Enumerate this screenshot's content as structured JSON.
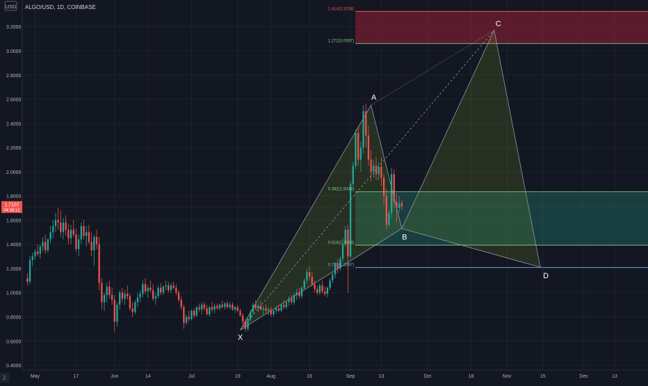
{
  "header": {
    "symbol_label": "ALGO/USD, 1D, COINBASE",
    "currency_badge": "USD",
    "corner_badge": "Z"
  },
  "colors": {
    "background": "#131722",
    "grid": "#1e222d",
    "text": "#b2b5be",
    "candle_up": "#26a69a",
    "candle_down": "#ef5350",
    "pattern_fill": "#6b8e23",
    "pattern_stroke": "#9598a1",
    "zone_red": "#b2243a",
    "zone_teal": "#1e6e66",
    "line_green": "#81c784",
    "line_blue": "#5fb3e6",
    "price_badge": "#ef5350"
  },
  "chart_data": {
    "type": "candlestick",
    "title": "ALGO/USD, 1D, COINBASE",
    "ylim": [
      0.36,
      3.42
    ],
    "y_ticks": [
      "3.2000",
      "3.0000",
      "2.8000",
      "2.6000",
      "2.4000",
      "2.2000",
      "2.0000",
      "1.8000",
      "1.6000",
      "1.4000",
      "1.2000",
      "1.0000",
      "0.8000",
      "0.6000",
      "0.4000"
    ],
    "x_axis": {
      "range": [
        "2021-04-26",
        "2021-12-26"
      ],
      "ticks": [
        {
          "date": "2021-05-01",
          "label": "May"
        },
        {
          "date": "2021-05-17",
          "label": "17"
        },
        {
          "date": "2021-06-01",
          "label": "Jun"
        },
        {
          "date": "2021-06-14",
          "label": "14"
        },
        {
          "date": "2021-07-01",
          "label": "Jul"
        },
        {
          "date": "2021-07-19",
          "label": "19"
        },
        {
          "date": "2021-08-01",
          "label": "Aug"
        },
        {
          "date": "2021-08-16",
          "label": "16"
        },
        {
          "date": "2021-09-01",
          "label": "Sep"
        },
        {
          "date": "2021-09-13",
          "label": "13"
        },
        {
          "date": "2021-10-01",
          "label": "Oct"
        },
        {
          "date": "2021-10-18",
          "label": "18"
        },
        {
          "date": "2021-11-01",
          "label": "Nov"
        },
        {
          "date": "2021-11-15",
          "label": "15"
        },
        {
          "date": "2021-12-01",
          "label": "Dec"
        },
        {
          "date": "2021-12-13",
          "label": "13"
        }
      ]
    },
    "candles": {
      "start_date": "2021-04-28",
      "ohlc": [
        [
          1.12,
          1.16,
          1.06,
          1.09
        ],
        [
          1.09,
          1.3,
          1.07,
          1.27
        ],
        [
          1.27,
          1.33,
          1.22,
          1.3
        ],
        [
          1.3,
          1.36,
          1.27,
          1.34
        ],
        [
          1.34,
          1.4,
          1.3,
          1.32
        ],
        [
          1.32,
          1.4,
          1.28,
          1.38
        ],
        [
          1.38,
          1.46,
          1.34,
          1.42
        ],
        [
          1.42,
          1.48,
          1.32,
          1.35
        ],
        [
          1.35,
          1.45,
          1.33,
          1.44
        ],
        [
          1.44,
          1.55,
          1.41,
          1.5
        ],
        [
          1.5,
          1.6,
          1.45,
          1.55
        ],
        [
          1.55,
          1.66,
          1.5,
          1.6
        ],
        [
          1.6,
          1.7,
          1.52,
          1.58
        ],
        [
          1.58,
          1.68,
          1.46,
          1.5
        ],
        [
          1.5,
          1.62,
          1.44,
          1.58
        ],
        [
          1.58,
          1.64,
          1.47,
          1.52
        ],
        [
          1.52,
          1.57,
          1.4,
          1.45
        ],
        [
          1.45,
          1.56,
          1.4,
          1.52
        ],
        [
          1.52,
          1.6,
          1.46,
          1.48
        ],
        [
          1.48,
          1.53,
          1.34,
          1.36
        ],
        [
          1.36,
          1.48,
          1.3,
          1.44
        ],
        [
          1.44,
          1.58,
          1.4,
          1.55
        ],
        [
          1.55,
          1.6,
          1.44,
          1.47
        ],
        [
          1.47,
          1.55,
          1.38,
          1.5
        ],
        [
          1.5,
          1.56,
          1.4,
          1.42
        ],
        [
          1.42,
          1.5,
          1.3,
          1.35
        ],
        [
          1.35,
          1.48,
          1.22,
          1.46
        ],
        [
          1.46,
          1.52,
          1.36,
          1.4
        ],
        [
          1.4,
          1.46,
          1.02,
          1.08
        ],
        [
          1.08,
          1.12,
          0.86,
          0.92
        ],
        [
          0.92,
          1.0,
          0.85,
          0.98
        ],
        [
          0.98,
          1.08,
          0.92,
          1.05
        ],
        [
          1.05,
          1.1,
          0.95,
          0.98
        ],
        [
          0.98,
          1.04,
          0.9,
          0.94
        ],
        [
          0.94,
          0.98,
          0.68,
          0.76
        ],
        [
          0.76,
          0.92,
          0.72,
          0.9
        ],
        [
          0.9,
          1.02,
          0.86,
          1.0
        ],
        [
          1.0,
          1.04,
          0.92,
          0.95
        ],
        [
          0.95,
          1.02,
          0.9,
          0.99
        ],
        [
          0.99,
          1.06,
          0.94,
          0.97
        ],
        [
          0.97,
          0.99,
          0.85,
          0.87
        ],
        [
          0.87,
          0.92,
          0.8,
          0.84
        ],
        [
          0.84,
          0.94,
          0.82,
          0.92
        ],
        [
          0.92,
          1.0,
          0.88,
          0.96
        ],
        [
          0.96,
          1.02,
          0.92,
          0.99
        ],
        [
          0.99,
          1.1,
          0.96,
          1.07
        ],
        [
          1.07,
          1.12,
          0.99,
          1.01
        ],
        [
          1.01,
          1.06,
          0.96,
          1.04
        ],
        [
          1.04,
          1.1,
          1.0,
          1.02
        ],
        [
          1.02,
          1.07,
          0.93,
          0.95
        ],
        [
          0.95,
          1.0,
          0.9,
          0.97
        ],
        [
          0.97,
          1.06,
          0.95,
          1.04
        ],
        [
          1.04,
          1.08,
          0.98,
          1.0
        ],
        [
          1.0,
          1.06,
          0.98,
          1.05
        ],
        [
          1.05,
          1.1,
          1.02,
          1.06
        ],
        [
          1.06,
          1.09,
          1.0,
          1.02
        ],
        [
          1.02,
          1.08,
          1.0,
          1.06
        ],
        [
          1.06,
          1.09,
          1.03,
          1.04
        ],
        [
          1.04,
          1.07,
          0.98,
          1.0
        ],
        [
          1.0,
          1.02,
          0.92,
          0.94
        ],
        [
          0.94,
          0.97,
          0.86,
          0.88
        ],
        [
          0.88,
          0.9,
          0.7,
          0.75
        ],
        [
          0.75,
          0.82,
          0.73,
          0.8
        ],
        [
          0.8,
          0.85,
          0.76,
          0.78
        ],
        [
          0.78,
          0.86,
          0.77,
          0.85
        ],
        [
          0.85,
          0.87,
          0.79,
          0.81
        ],
        [
          0.81,
          0.89,
          0.8,
          0.88
        ],
        [
          0.88,
          0.91,
          0.84,
          0.86
        ],
        [
          0.86,
          0.92,
          0.82,
          0.9
        ],
        [
          0.9,
          0.92,
          0.85,
          0.87
        ],
        [
          0.87,
          0.9,
          0.81,
          0.82
        ],
        [
          0.82,
          0.89,
          0.8,
          0.88
        ],
        [
          0.88,
          0.92,
          0.84,
          0.86
        ],
        [
          0.86,
          0.91,
          0.83,
          0.89
        ],
        [
          0.89,
          0.91,
          0.86,
          0.87
        ],
        [
          0.87,
          0.91,
          0.85,
          0.9
        ],
        [
          0.9,
          0.93,
          0.87,
          0.88
        ],
        [
          0.88,
          0.92,
          0.86,
          0.91
        ],
        [
          0.91,
          0.93,
          0.87,
          0.88
        ],
        [
          0.88,
          0.92,
          0.86,
          0.9
        ],
        [
          0.9,
          0.92,
          0.85,
          0.86
        ],
        [
          0.86,
          0.89,
          0.83,
          0.88
        ],
        [
          0.88,
          0.9,
          0.84,
          0.85
        ],
        [
          0.85,
          0.87,
          0.8,
          0.81
        ],
        [
          0.81,
          0.83,
          0.74,
          0.76
        ],
        [
          0.76,
          0.78,
          0.68,
          0.7
        ],
        [
          0.7,
          0.8,
          0.68,
          0.78
        ],
        [
          0.78,
          0.86,
          0.76,
          0.84
        ],
        [
          0.84,
          0.92,
          0.82,
          0.9
        ],
        [
          0.9,
          0.94,
          0.86,
          0.87
        ],
        [
          0.87,
          0.91,
          0.84,
          0.89
        ],
        [
          0.89,
          0.93,
          0.85,
          0.86
        ],
        [
          0.86,
          0.89,
          0.81,
          0.87
        ],
        [
          0.87,
          0.9,
          0.83,
          0.85
        ],
        [
          0.85,
          0.88,
          0.81,
          0.86
        ],
        [
          0.86,
          0.88,
          0.8,
          0.82
        ],
        [
          0.82,
          0.86,
          0.8,
          0.85
        ],
        [
          0.85,
          0.89,
          0.83,
          0.87
        ],
        [
          0.87,
          0.9,
          0.84,
          0.85
        ],
        [
          0.85,
          0.91,
          0.84,
          0.9
        ],
        [
          0.9,
          0.94,
          0.86,
          0.88
        ],
        [
          0.88,
          0.93,
          0.86,
          0.92
        ],
        [
          0.92,
          0.97,
          0.89,
          0.95
        ],
        [
          0.95,
          0.98,
          0.9,
          0.92
        ],
        [
          0.92,
          1.0,
          0.9,
          0.98
        ],
        [
          0.98,
          1.03,
          0.94,
          1.0
        ],
        [
          1.0,
          1.04,
          0.95,
          0.97
        ],
        [
          0.97,
          1.05,
          0.95,
          1.04
        ],
        [
          1.04,
          1.12,
          1.02,
          1.1
        ],
        [
          1.1,
          1.2,
          1.07,
          1.17
        ],
        [
          1.17,
          1.22,
          1.1,
          1.13
        ],
        [
          1.13,
          1.17,
          1.05,
          1.07
        ],
        [
          1.07,
          1.1,
          1.0,
          1.03
        ],
        [
          1.03,
          1.06,
          0.98,
          1.0
        ],
        [
          1.0,
          1.08,
          0.98,
          1.06
        ],
        [
          1.06,
          1.1,
          0.99,
          1.01
        ],
        [
          1.01,
          1.05,
          0.97,
          0.99
        ],
        [
          0.99,
          1.05,
          0.96,
          1.04
        ],
        [
          1.04,
          1.12,
          1.02,
          1.1
        ],
        [
          1.1,
          1.17,
          1.08,
          1.15
        ],
        [
          1.15,
          1.25,
          1.12,
          1.22
        ],
        [
          1.22,
          1.28,
          1.16,
          1.2
        ],
        [
          1.2,
          1.3,
          1.18,
          1.28
        ],
        [
          1.28,
          1.45,
          1.25,
          1.4
        ],
        [
          1.4,
          1.55,
          1.38,
          1.52
        ],
        [
          1.52,
          1.56,
          1.0,
          1.3
        ],
        [
          1.3,
          1.92,
          1.28,
          1.9
        ],
        [
          1.9,
          2.08,
          1.85,
          2.05
        ],
        [
          2.05,
          2.35,
          2.02,
          2.32
        ],
        [
          2.32,
          2.38,
          2.05,
          2.1
        ],
        [
          2.1,
          2.25,
          2.0,
          2.2
        ],
        [
          2.2,
          2.55,
          2.15,
          2.5
        ],
        [
          2.5,
          2.56,
          2.2,
          2.3
        ],
        [
          2.3,
          2.38,
          2.05,
          2.1
        ],
        [
          2.1,
          2.18,
          1.92,
          2.0
        ],
        [
          2.0,
          2.1,
          1.95,
          2.05
        ],
        [
          2.05,
          2.12,
          1.93,
          1.98
        ],
        [
          1.98,
          2.08,
          1.93,
          2.04
        ],
        [
          2.04,
          2.12,
          1.88,
          1.95
        ],
        [
          1.95,
          1.98,
          1.72,
          1.8
        ],
        [
          1.8,
          1.86,
          1.52,
          1.56
        ],
        [
          1.56,
          1.68,
          1.54,
          1.66
        ],
        [
          1.66,
          2.03,
          1.62,
          1.98
        ],
        [
          1.98,
          2.02,
          1.7,
          1.75
        ],
        [
          1.75,
          1.82,
          1.58,
          1.7
        ],
        [
          1.7,
          1.8,
          1.66,
          1.74
        ],
        [
          1.74,
          1.77,
          1.68,
          1.71
        ]
      ]
    },
    "last_price": {
      "label": "1.7107",
      "sub_label": "04:38:12"
    },
    "horizontal_levels": [
      {
        "label": "1.414(3.3258)",
        "value": 3.3258
      },
      {
        "label": "1.272(3.0597)",
        "value": 3.0597
      },
      {
        "label": "0.382(1.8341)",
        "value": 1.8341
      },
      {
        "label": "0.618(1.3919)",
        "value": 1.3919
      },
      {
        "label": "0.786(1.2087)",
        "value": 1.2087
      }
    ],
    "zones": [
      {
        "name": "target-zone",
        "from": 3.0597,
        "to": 3.3258
      },
      {
        "name": "retracement-zone",
        "from": 1.3919,
        "to": 1.8341
      }
    ],
    "harmonic_pattern": {
      "points": [
        {
          "label": "X",
          "date": "2021-07-20",
          "value": 0.69
        },
        {
          "label": "A",
          "date": "2021-09-09",
          "value": 2.55
        },
        {
          "label": "B",
          "date": "2021-09-21",
          "value": 1.53
        },
        {
          "label": "C",
          "date": "2021-10-27",
          "value": 3.17
        },
        {
          "label": "D",
          "date": "2021-11-14",
          "value": 1.21
        }
      ]
    }
  }
}
